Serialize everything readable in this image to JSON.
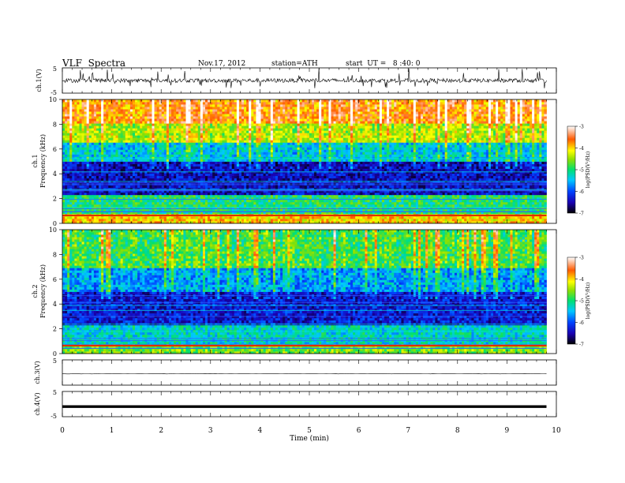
{
  "header": {
    "title": "VLF  Spectra",
    "date": "Nov.17, 2012",
    "station": "station=ATH",
    "start": "start  UT =   8 :40: 0"
  },
  "chart_data": [
    {
      "type": "line",
      "panel": "ch1-waveform",
      "ylabel": "ch.1(V)",
      "ylim": [
        -5,
        5
      ],
      "yticks": [
        "5",
        "-5"
      ],
      "xlim": [
        0,
        10
      ],
      "x_data_extent": [
        0,
        9.8
      ],
      "description_level": "noisy signal near 0 V, spikes up to about ±4 V"
    },
    {
      "type": "heatmap",
      "panel": "ch1-spectrogram",
      "ylabel_channel": "ch.1",
      "ylabel": "Frequency  (kHz)",
      "ylim": [
        0,
        10
      ],
      "yticks": [
        "0",
        "2",
        "4",
        "6",
        "8",
        "10"
      ],
      "xlim": [
        0,
        10
      ],
      "x_data_extent": [
        0,
        9.8
      ],
      "colorbar": {
        "label": "log(PSD(V²/Hz)",
        "range": [
          -7,
          -3
        ],
        "ticks": [
          "-3",
          "-4",
          "-5",
          "-6",
          "-7"
        ]
      },
      "bands": [
        {
          "from_khz": 0,
          "to_khz": 0.8,
          "level": -4.0
        },
        {
          "from_khz": 0.8,
          "to_khz": 2.4,
          "level": -5.0
        },
        {
          "from_khz": 2.4,
          "to_khz": 5.0,
          "level": -6.4
        },
        {
          "from_khz": 5.0,
          "to_khz": 6.5,
          "level": -5.4
        },
        {
          "from_khz": 6.5,
          "to_khz": 8.0,
          "level": -4.4
        },
        {
          "from_khz": 8.0,
          "to_khz": 10,
          "level": -3.7
        }
      ]
    },
    {
      "type": "heatmap",
      "panel": "ch2-spectrogram",
      "ylabel_channel": "ch.2",
      "ylabel": "Frequency  (kHz)",
      "ylim": [
        0,
        10
      ],
      "yticks": [
        "0",
        "2",
        "4",
        "6",
        "8",
        "10"
      ],
      "xlim": [
        0,
        10
      ],
      "x_data_extent": [
        0,
        9.8
      ],
      "colorbar": {
        "label": "log(PSD(V²/Hz)",
        "range": [
          -7,
          -3
        ],
        "ticks": [
          "-3",
          "-4",
          "-5",
          "-6",
          "-7"
        ]
      },
      "bands": [
        {
          "from_khz": 0,
          "to_khz": 0.8,
          "level": -4.6
        },
        {
          "from_khz": 0.8,
          "to_khz": 2.4,
          "level": -5.3
        },
        {
          "from_khz": 2.4,
          "to_khz": 5.0,
          "level": -6.3
        },
        {
          "from_khz": 5.0,
          "to_khz": 7.0,
          "level": -5.6
        },
        {
          "from_khz": 7.0,
          "to_khz": 10,
          "level": -4.8
        }
      ]
    },
    {
      "type": "line",
      "panel": "ch3-waveform",
      "ylabel": "ch.3(V)",
      "ylim": [
        -5,
        5
      ],
      "yticks": [
        "5"
      ],
      "xlim": [
        0,
        10
      ],
      "x_data_extent": [
        0,
        9.8
      ],
      "description_level": "flat line near -0.5 V"
    },
    {
      "type": "line",
      "panel": "ch4-waveform",
      "ylabel": "ch.4(V)",
      "ylim": [
        -5,
        5
      ],
      "yticks": [
        "5",
        "-5"
      ],
      "xlim": [
        0,
        10
      ],
      "x_data_extent": [
        0,
        9.8
      ],
      "description_level": "thick flat line near -1 V"
    }
  ],
  "xaxis": {
    "label": "Time  (min)",
    "ticks": [
      "0",
      "1",
      "2",
      "3",
      "4",
      "5",
      "6",
      "7",
      "8",
      "9",
      "10"
    ]
  }
}
